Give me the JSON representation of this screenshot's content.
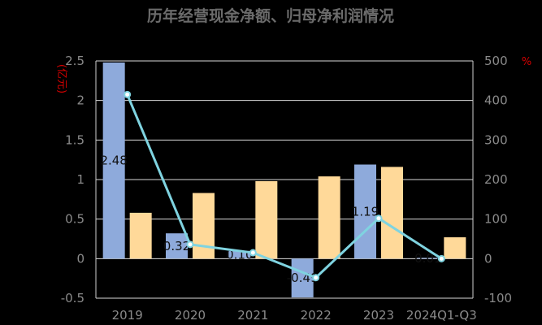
{
  "chart_data": {
    "type": "bar",
    "title": "历年经营现金净额、归母净利润情况",
    "categories": [
      "2019",
      "2020",
      "2021",
      "2022",
      "2023",
      "2024Q1-Q3"
    ],
    "y_left_unit": "(亿元)",
    "y_right_unit": "%",
    "y_left_lim": [
      -0.5,
      2.5
    ],
    "y_left_ticks": [
      "-0.5",
      "0",
      "0.5",
      "1",
      "1.5",
      "2",
      "2.5"
    ],
    "y_right_lim": [
      -100,
      500
    ],
    "y_right_ticks": [
      "-100",
      "0",
      "100",
      "200",
      "300",
      "400",
      "500"
    ],
    "series": [
      {
        "values": [
          2.48,
          0.32,
          0.1,
          -0.49,
          1.19,
          0.01
        ],
        "labels": [
          "2.48",
          "0.32",
          "0.10",
          "-0.49",
          "1.19",
          "0.01"
        ],
        "color": "#8eaadb",
        "axis": "left",
        "kind": "bar"
      },
      {
        "values": [
          0.58,
          0.83,
          0.98,
          1.04,
          1.16,
          0.27
        ],
        "color": "#ffd999",
        "axis": "left",
        "kind": "bar"
      },
      {
        "values": [
          415,
          36,
          15,
          -48,
          102,
          0
        ],
        "color": "#7fd3e0",
        "axis": "right",
        "kind": "line"
      }
    ],
    "grid": true,
    "legend": "none"
  }
}
